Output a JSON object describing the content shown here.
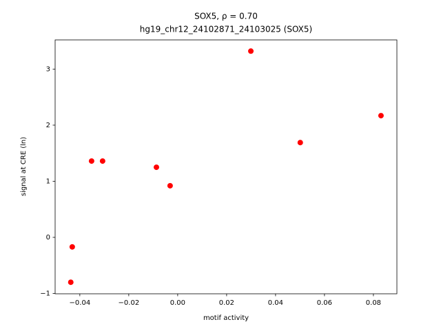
{
  "chart_data": {
    "type": "scatter",
    "title": [
      "SOX5, ρ = 0.70",
      "hg19_chr12_24102871_24103025 (SOX5)"
    ],
    "x_label": "motif activity",
    "y_label": "signal at CRE (ln)",
    "series": [
      {
        "color": "#ff0000",
        "x": [
          -0.0431,
          -0.0437,
          -0.0352,
          -0.0307,
          -0.0087,
          -0.0031,
          0.0299,
          0.0501,
          0.0831
        ],
        "values": [
          -0.17,
          -0.8,
          1.36,
          1.36,
          1.25,
          0.92,
          3.32,
          1.69,
          2.17
        ]
      }
    ],
    "xlim": [
      -0.0501,
      0.0896
    ],
    "ylim": [
      -1.006,
      3.52
    ],
    "xticks": [
      {
        "value": -0.04,
        "label": "−0.04"
      },
      {
        "value": -0.02,
        "label": "−0.02"
      },
      {
        "value": 0,
        "label": "0.00"
      },
      {
        "value": 0.02,
        "label": "0.02"
      },
      {
        "value": 0.04,
        "label": "0.04"
      },
      {
        "value": 0.06,
        "label": "0.06"
      },
      {
        "value": 0.08,
        "label": "0.08"
      }
    ],
    "yticks": [
      {
        "value": -1,
        "label": "−1"
      },
      0,
      1,
      2,
      3
    ]
  }
}
